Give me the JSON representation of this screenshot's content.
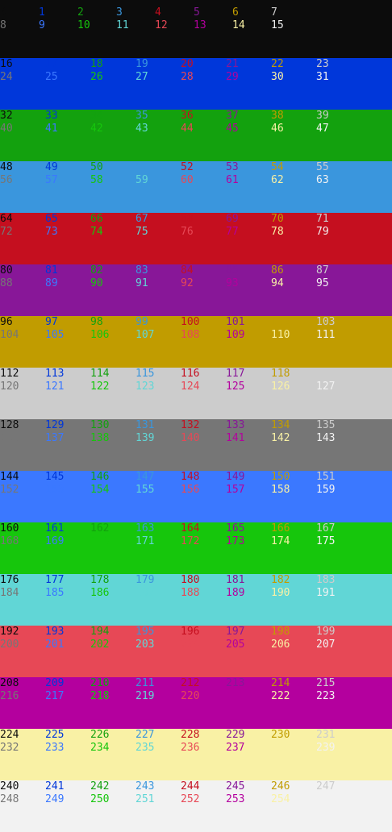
{
  "palette": [
    "#0c0c0c",
    "#0037da",
    "#13a10e",
    "#3a96dd",
    "#c50f1f",
    "#881798",
    "#c19c00",
    "#cccccc",
    "#767676",
    "#3b78ff",
    "#16c60c",
    "#61d6d6",
    "#e74856",
    "#b4009e",
    "#f9f1a5",
    "#f2f2f2"
  ],
  "rows": [
    {
      "bg": 0,
      "lines": [
        [
          0,
          1,
          2,
          3,
          4,
          5,
          6,
          7
        ],
        [
          8,
          9,
          10,
          11,
          12,
          13,
          14,
          15
        ]
      ]
    },
    {
      "bg": 1,
      "lines": [
        [
          16,
          17,
          18,
          19,
          20,
          21,
          22,
          23
        ],
        [
          24,
          25,
          26,
          27,
          28,
          29,
          30,
          31
        ]
      ]
    },
    {
      "bg": 2,
      "lines": [
        [
          32,
          33,
          34,
          35,
          36,
          37,
          38,
          39
        ],
        [
          40,
          41,
          42,
          43,
          44,
          45,
          46,
          47
        ]
      ]
    },
    {
      "bg": 3,
      "lines": [
        [
          48,
          49,
          50,
          51,
          52,
          53,
          54,
          55
        ],
        [
          56,
          57,
          58,
          59,
          60,
          61,
          62,
          63
        ]
      ]
    },
    {
      "bg": 4,
      "lines": [
        [
          64,
          65,
          66,
          67,
          68,
          69,
          70,
          71
        ],
        [
          72,
          73,
          74,
          75,
          76,
          77,
          78,
          79
        ]
      ]
    },
    {
      "bg": 5,
      "lines": [
        [
          80,
          81,
          82,
          83,
          84,
          85,
          86,
          87
        ],
        [
          88,
          89,
          90,
          91,
          92,
          93,
          94,
          95
        ]
      ]
    },
    {
      "bg": 6,
      "lines": [
        [
          96,
          97,
          98,
          99,
          100,
          101,
          102,
          103
        ],
        [
          104,
          105,
          106,
          107,
          108,
          109,
          110,
          111
        ]
      ]
    },
    {
      "bg": 7,
      "lines": [
        [
          112,
          113,
          114,
          115,
          116,
          117,
          118,
          119
        ],
        [
          120,
          121,
          122,
          123,
          124,
          125,
          126,
          127
        ]
      ]
    },
    {
      "bg": 8,
      "lines": [
        [
          128,
          129,
          130,
          131,
          132,
          133,
          134,
          135
        ],
        [
          136,
          137,
          138,
          139,
          140,
          141,
          142,
          143
        ]
      ]
    },
    {
      "bg": 9,
      "lines": [
        [
          144,
          145,
          146,
          147,
          148,
          149,
          150,
          151
        ],
        [
          152,
          153,
          154,
          155,
          156,
          157,
          158,
          159
        ]
      ]
    },
    {
      "bg": 10,
      "lines": [
        [
          160,
          161,
          162,
          163,
          164,
          165,
          166,
          167
        ],
        [
          168,
          169,
          170,
          171,
          172,
          173,
          174,
          175
        ]
      ]
    },
    {
      "bg": 11,
      "lines": [
        [
          176,
          177,
          178,
          179,
          180,
          181,
          182,
          183
        ],
        [
          184,
          185,
          186,
          187,
          188,
          189,
          190,
          191
        ]
      ]
    },
    {
      "bg": 12,
      "lines": [
        [
          192,
          193,
          194,
          195,
          196,
          197,
          198,
          199
        ],
        [
          200,
          201,
          202,
          203,
          204,
          205,
          206,
          207
        ]
      ]
    },
    {
      "bg": 13,
      "lines": [
        [
          208,
          209,
          210,
          211,
          212,
          213,
          214,
          215
        ],
        [
          216,
          217,
          218,
          219,
          220,
          221,
          222,
          223
        ]
      ]
    },
    {
      "bg": 14,
      "lines": [
        [
          224,
          225,
          226,
          227,
          228,
          229,
          230,
          231
        ],
        [
          232,
          233,
          234,
          235,
          236,
          237,
          238,
          239
        ]
      ]
    },
    {
      "bg": 15,
      "lines": [
        [
          240,
          241,
          242,
          243,
          244,
          245,
          246,
          247
        ],
        [
          248,
          249,
          250,
          251,
          252,
          253,
          254,
          255
        ]
      ]
    }
  ]
}
